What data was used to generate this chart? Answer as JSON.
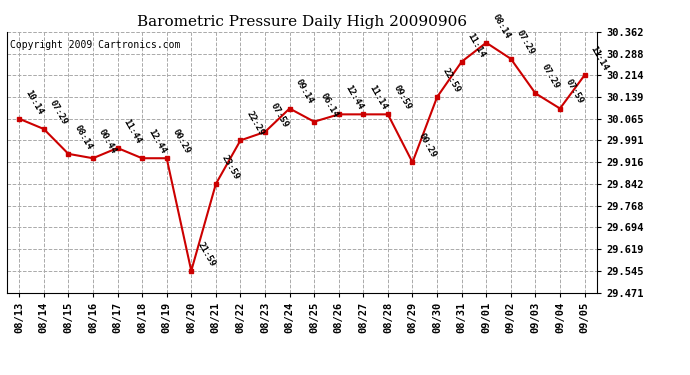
{
  "title": "Barometric Pressure Daily High 20090906",
  "copyright": "Copyright 2009 Cartronics.com",
  "x_labels": [
    "08/13",
    "08/14",
    "08/15",
    "08/16",
    "08/17",
    "08/18",
    "08/19",
    "08/20",
    "08/21",
    "08/22",
    "08/23",
    "08/24",
    "08/25",
    "08/26",
    "08/27",
    "08/28",
    "08/29",
    "08/30",
    "08/31",
    "09/01",
    "09/02",
    "09/03",
    "09/04",
    "09/05"
  ],
  "y_values": [
    30.065,
    30.03,
    29.945,
    29.93,
    29.965,
    29.93,
    29.93,
    29.545,
    29.842,
    29.991,
    30.02,
    30.1,
    30.055,
    30.08,
    30.08,
    30.08,
    29.916,
    30.139,
    30.26,
    30.325,
    30.27,
    30.152,
    30.1,
    30.214
  ],
  "time_labels": [
    "10:14",
    "07:29",
    "08:14",
    "00:44",
    "11:44",
    "12:44",
    "00:29",
    "21:59",
    "23:59",
    "22:29",
    "07:59",
    "09:14",
    "06:14",
    "12:44",
    "11:14",
    "09:59",
    "00:29",
    "22:59",
    "11:14",
    "08:14",
    "07:29",
    "07:29",
    "07:59",
    "11:14"
  ],
  "y_ticks": [
    29.471,
    29.545,
    29.619,
    29.694,
    29.768,
    29.842,
    29.916,
    29.991,
    30.065,
    30.139,
    30.214,
    30.288,
    30.362
  ],
  "y_min": 29.471,
  "y_max": 30.362,
  "line_color": "#cc0000",
  "marker_color": "#cc0000",
  "background_color": "#ffffff",
  "grid_color": "#aaaaaa",
  "title_fontsize": 11,
  "copyright_fontsize": 7,
  "label_fontsize": 6.5,
  "tick_fontsize": 7.5
}
